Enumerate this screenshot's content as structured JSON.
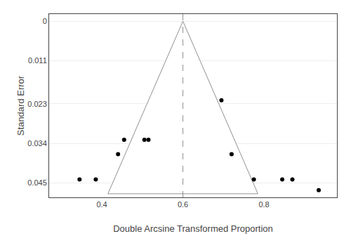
{
  "chart_data": {
    "type": "scatter",
    "title": "",
    "xlabel": "Double Arcsine Transformed Proportion",
    "ylabel": "Standard Error",
    "x": [
      0.345,
      0.385,
      0.44,
      0.455,
      0.505,
      0.515,
      0.695,
      0.72,
      0.775,
      0.845,
      0.87,
      0.935
    ],
    "values": [
      0.044,
      0.044,
      0.037,
      0.033,
      0.033,
      0.033,
      0.022,
      0.037,
      0.044,
      0.044,
      0.044,
      0.047
    ],
    "color": "#000000",
    "xlim": [
      0.27,
      0.98
    ],
    "ylim": [
      0.049,
      -0.002
    ],
    "xticks": [
      0.4,
      0.6,
      0.8
    ],
    "yticks": [
      0,
      0.011,
      0.023,
      0.034,
      0.045
    ],
    "grid": "y",
    "reference_x": 0.6,
    "funnel_x": [
      0.6,
      0.415,
      0.785
    ],
    "funnel_y": [
      0,
      0.048,
      0.048
    ],
    "band_y": [
      0.045,
      0.049
    ]
  }
}
